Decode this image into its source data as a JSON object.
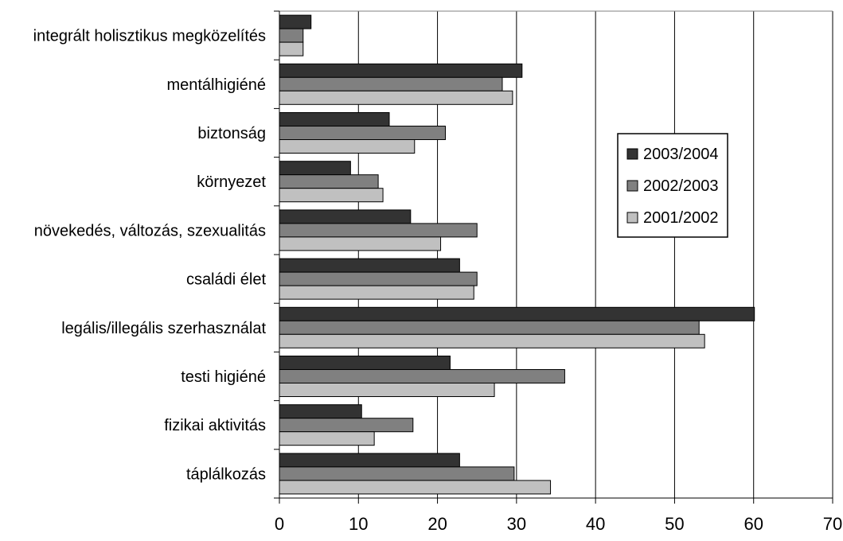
{
  "chart_data": {
    "type": "bar",
    "orientation": "horizontal",
    "categories": [
      "integrált holisztikus megközelítés",
      "mentálhigiéné",
      "biztonság",
      "környezet",
      "növekedés, változás, szexualitás",
      "családi élet",
      "legális/illegális szerhasználat",
      "testi higiéné",
      "fizikai aktivitás",
      "táplálkozás"
    ],
    "series": [
      {
        "name": "2003/2004",
        "color": "#333333",
        "values": [
          4,
          30.7,
          13.9,
          9,
          16.6,
          22.8,
          60.1,
          21.6,
          10.4,
          22.8
        ]
      },
      {
        "name": "2002/2003",
        "color": "#808080",
        "values": [
          3,
          28.2,
          21,
          12.5,
          25,
          25,
          53.1,
          36.1,
          16.9,
          29.7
        ]
      },
      {
        "name": "2001/2002",
        "color": "#c0c0c0",
        "values": [
          3,
          29.5,
          17.1,
          13.1,
          20.4,
          24.6,
          53.8,
          27.2,
          12,
          34.3
        ]
      }
    ],
    "xlim": [
      0,
      70
    ],
    "xticks": [
      0,
      10,
      20,
      30,
      40,
      50,
      60,
      70
    ],
    "grid": "vertical",
    "legend_position": "right"
  }
}
